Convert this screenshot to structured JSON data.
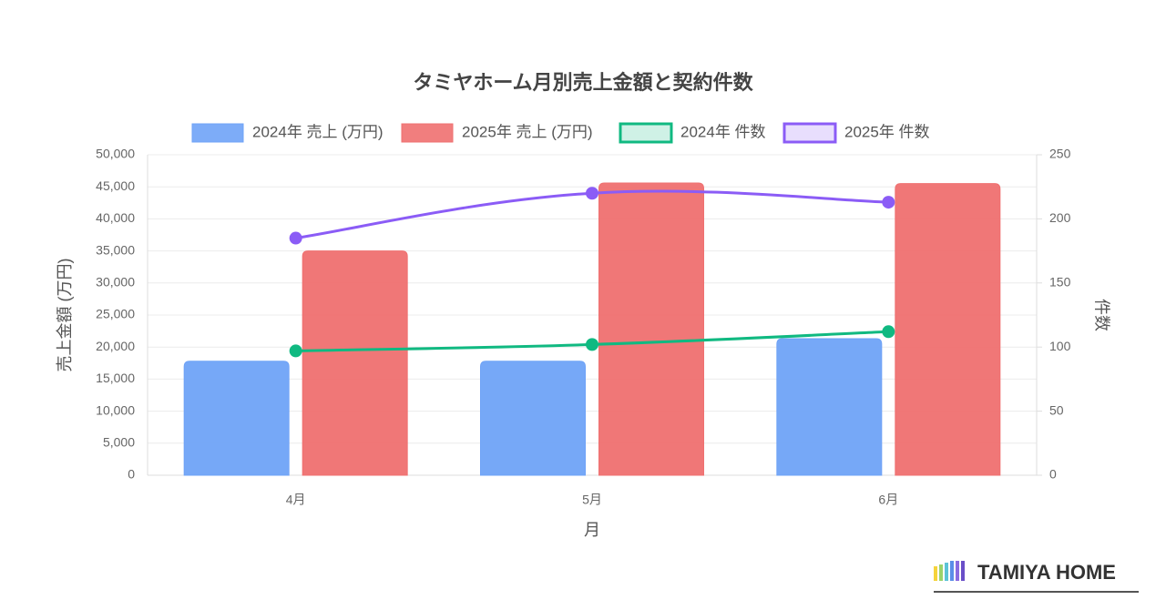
{
  "chart_data": {
    "type": "bar-line",
    "title": "タミヤホーム月別売上金額と契約件数",
    "x_label": "月",
    "y_label": "売上金額 (万円)",
    "y2_label": "件数",
    "categories": [
      "4月",
      "5月",
      "6月"
    ],
    "series": [
      {
        "name": "2024年 売上 (万円)",
        "type": "bar",
        "color": "#6fa3f7",
        "values": [
          17800,
          17800,
          21300
        ]
      },
      {
        "name": "2025年 売上 (万円)",
        "type": "bar",
        "color": "#ef7070",
        "values": [
          35000,
          45600,
          45500
        ]
      },
      {
        "name": "2024年 件数",
        "type": "line",
        "axis": "y2",
        "color": "#10b981",
        "values": [
          97,
          102,
          112
        ]
      },
      {
        "name": "2025年 件数",
        "type": "line",
        "axis": "y2",
        "color": "#8b5cf6",
        "values": [
          185,
          220,
          213
        ]
      }
    ],
    "ylim": [
      0,
      50000
    ],
    "yticks": [
      0,
      {
        "value": 5000,
        "label": "5,000"
      },
      {
        "value": 10000,
        "label": "10,000"
      },
      {
        "value": 15000,
        "label": "15,000"
      },
      {
        "value": 20000,
        "label": "20,000"
      },
      {
        "value": 25000,
        "label": "25,000"
      },
      {
        "value": 30000,
        "label": "30,000"
      },
      {
        "value": 35000,
        "label": "35,000"
      },
      {
        "value": 40000,
        "label": "40,000"
      },
      {
        "value": 45000,
        "label": "45,000"
      },
      {
        "value": 50000,
        "label": "50,000"
      }
    ],
    "y2lim": [
      0,
      250
    ],
    "y2ticks": [
      0,
      50,
      100,
      150,
      200,
      250
    ],
    "grid": true,
    "legend": "top"
  },
  "logo": "TAMIYA HOME"
}
